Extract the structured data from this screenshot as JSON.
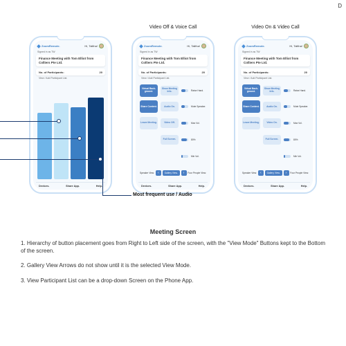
{
  "corner_letter": "D",
  "mockup_titles": [
    "",
    "Video Off & Voice Call",
    "Video On & Video Call"
  ],
  "app": {
    "brand": "ZoomRemote.",
    "greeting": "Hi, Talitha!",
    "signed_in": "Signed in as TW",
    "meeting_title": "Finance Meeting with Tom Elliot from Colliers Pte Ltd.",
    "participants_label": "No. of Participants:",
    "participants_count": "20",
    "view_list": "View / Add Participant List.",
    "nav": [
      "Devices.",
      "Share App.",
      "Help."
    ]
  },
  "bars": {
    "widths": [
      22,
      22,
      24,
      24
    ],
    "heights": [
      96,
      110,
      104,
      118
    ],
    "colors": [
      "#6db4e8",
      "#bfe4f7",
      "#3b7fc4",
      "#0b3a73"
    ]
  },
  "controls": {
    "col1": [
      {
        "label": "Virtual Back-ground.",
        "style": "primary"
      },
      {
        "label": "Share Content.",
        "style": "primary"
      },
      {
        "label": "Leave Meeting.",
        "style": "ghost"
      }
    ],
    "col2": [
      {
        "label": "Show Meeting Info.",
        "style": "ghost"
      },
      {
        "label": "Audio On.",
        "style": "ghost"
      },
      {
        "label": "Video Off.",
        "style": "ghost"
      },
      {
        "label": "Full Screen.",
        "style": "ghost"
      }
    ],
    "col2_video_on_idx": 2,
    "col2_video_on_label": "Video On.",
    "sliders": [
      {
        "label": "Raise Hand.",
        "pct": 60
      },
      {
        "label": "Mute Speaker.",
        "pct": 45
      },
      {
        "label": "Max Vol.",
        "pct": 70
      },
      {
        "label": "80%",
        "pct": 80
      },
      {
        "label": "Min Vol.",
        "pct": 20
      }
    ],
    "view_modes": [
      "Speaker View.",
      "Gallery View.",
      "Four People View."
    ],
    "selected_view_idx": [
      null,
      1,
      1
    ]
  },
  "callout_label": "Most frequent use / Audio",
  "description": {
    "heading": "Meeting Screen",
    "pts": [
      "1. Hierarchy of button placement goes from Right to Left side of the screen, with the \"View Mode\" Buttons kept to the Bottom of the screen.",
      "2. Gallery View Arrows do not show until it is the selected View Mode.",
      "3. View Participant List can be a drop-down Screen on the Phone App."
    ]
  },
  "colors": {
    "phone_border": "#c9dff5",
    "primary": "#4a7fc4",
    "ghost_bg": "#dce9f7",
    "dark": "#0b3a73"
  }
}
